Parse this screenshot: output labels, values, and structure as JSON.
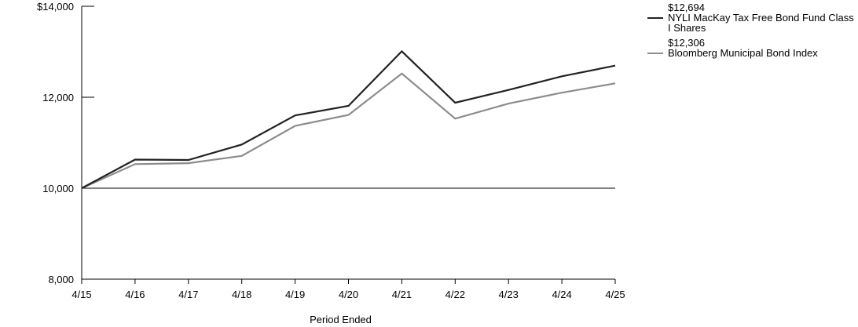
{
  "chart_data": {
    "type": "line",
    "title": "",
    "xlabel": "Period Ended",
    "ylabel": "",
    "x": [
      "4/15",
      "4/16",
      "4/17",
      "4/18",
      "4/19",
      "4/20",
      "4/21",
      "4/22",
      "4/23",
      "4/24",
      "4/25"
    ],
    "yticks": [
      "$14,000",
      "12,000",
      "10,000",
      "8,000"
    ],
    "ytick_values": [
      14000,
      12000,
      10000,
      8000
    ],
    "ylim": [
      8000,
      14000
    ],
    "baseline": 10000,
    "grid": false,
    "legend_position": "top-right",
    "series": [
      {
        "name": "NYLI MacKay Tax Free Bond Fund Class I Shares",
        "end_label": "$12,694",
        "color": "#222222",
        "values": [
          10000,
          10630,
          10620,
          10960,
          11600,
          11810,
          13010,
          11880,
          12160,
          12460,
          12694
        ]
      },
      {
        "name": "Bloomberg Municipal Bond Index",
        "end_label": "$12,306",
        "color": "#8c8c8c",
        "values": [
          10000,
          10530,
          10550,
          10710,
          11370,
          11610,
          12520,
          11530,
          11860,
          12100,
          12306
        ]
      }
    ]
  }
}
